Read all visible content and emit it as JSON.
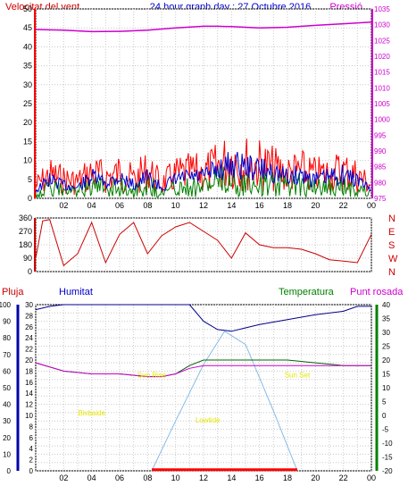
{
  "header": {
    "left_label": "Velocitat del vent",
    "title": "24 hour graph day : 27 Octubre 2016",
    "right_label": "Pressió"
  },
  "lower_labels": {
    "pluja": "Pluja",
    "humitat": "Humitat",
    "temperatura": "Temperatura",
    "punt_rosada": "Punt rosada"
  },
  "colors": {
    "wind_speed": "#ff0000",
    "wind_avg": "#0000cc",
    "wind_dir_avg": "#008000",
    "pressure": "#cc00cc",
    "direction": "#cc0000",
    "humidity": "#00008b",
    "temperature": "#006400",
    "dew_point": "#cc00cc",
    "sun": "#87bde8",
    "rain": "#ff0000",
    "sun_labels": "#e6e600",
    "left_axis_rain": "#0000aa",
    "right_axis_temp": "#008000",
    "axis_wind": "#ff0000",
    "axis_pressure": "#cc00cc"
  },
  "chart_data": [
    {
      "type": "line",
      "name": "wind-pressure",
      "x_ticks": [
        "02",
        "04",
        "06",
        "08",
        "10",
        "12",
        "14",
        "16",
        "18",
        "20",
        "22",
        "00"
      ],
      "y_left": {
        "ticks": [
          0,
          5,
          10,
          15,
          20,
          25,
          30,
          35,
          40,
          45,
          50
        ],
        "lim": [
          0,
          50
        ]
      },
      "y_right": {
        "ticks": [
          975,
          980,
          985,
          990,
          995,
          1000,
          1005,
          1010,
          1015,
          1020,
          1025,
          1030,
          1035
        ],
        "lim": [
          975,
          1035
        ]
      },
      "pressure": {
        "x": [
          0,
          2,
          4,
          6,
          8,
          10,
          12,
          13,
          14,
          16,
          18,
          20,
          22,
          24
        ],
        "y": [
          1028.5,
          1028.3,
          1027.8,
          1027.9,
          1028.3,
          1029.0,
          1029.5,
          1029.5,
          1029.4,
          1029.0,
          1029.2,
          1029.8,
          1030.3,
          1030.8
        ]
      },
      "wind_envelope": {
        "x": [
          0,
          1,
          2,
          3,
          4,
          5,
          6,
          7,
          8,
          9,
          10,
          11,
          12,
          13,
          14,
          15,
          16,
          17,
          18,
          19,
          20,
          21,
          22,
          23,
          24
        ],
        "gust": [
          6,
          11,
          9,
          8,
          12,
          10,
          12,
          9,
          13,
          7,
          11,
          12,
          12,
          15,
          19,
          17,
          16,
          14,
          12,
          13,
          11,
          12,
          13,
          11,
          6
        ],
        "avg": [
          3,
          7,
          5,
          4,
          8,
          6,
          8,
          5,
          8,
          4,
          7,
          8,
          8,
          11,
          13,
          12,
          11,
          10,
          8,
          9,
          7,
          8,
          9,
          7,
          3
        ],
        "dir_avg": [
          2,
          5,
          4,
          3,
          6,
          5,
          6,
          4,
          7,
          3,
          5,
          6,
          6,
          8,
          9,
          8,
          7,
          7,
          6,
          7,
          5,
          6,
          6,
          5,
          2
        ]
      }
    },
    {
      "type": "scatter",
      "name": "wind-direction",
      "x_ticks": [
        "02",
        "04",
        "06",
        "08",
        "10",
        "12",
        "14",
        "16",
        "18",
        "20",
        "22",
        "00"
      ],
      "y_left": {
        "ticks": [
          0,
          90,
          180,
          270,
          360
        ],
        "lim": [
          0,
          360
        ]
      },
      "y_right_labels": [
        "N",
        "W",
        "S",
        "E",
        "N"
      ],
      "direction": {
        "x": [
          0,
          0.5,
          1,
          2,
          3,
          4,
          5,
          6,
          7,
          8,
          9,
          10,
          11,
          12,
          13,
          14,
          15,
          16,
          17,
          18,
          19,
          20,
          21,
          22,
          23,
          24
        ],
        "y": [
          90,
          340,
          350,
          40,
          120,
          330,
          60,
          250,
          330,
          120,
          240,
          300,
          330,
          270,
          210,
          90,
          260,
          180,
          160,
          160,
          150,
          120,
          80,
          70,
          60,
          250
        ]
      }
    },
    {
      "type": "line",
      "name": "weather",
      "x_ticks": [
        "02",
        "04",
        "06",
        "08",
        "10",
        "12",
        "14",
        "16",
        "18",
        "20",
        "22",
        "00"
      ],
      "y_left": {
        "ticks": [
          0,
          5,
          10,
          15,
          20,
          25,
          30,
          35,
          40,
          45,
          50,
          55,
          60,
          65,
          70,
          75,
          80,
          85,
          90,
          95,
          100
        ],
        "lim": [
          0,
          100
        ]
      },
      "y_left_inner": {
        "ticks": [
          0,
          2,
          4,
          6,
          8,
          10,
          12,
          14,
          16,
          18,
          20,
          22,
          24,
          26,
          28,
          30
        ],
        "lim": [
          0,
          30
        ]
      },
      "y_right": {
        "ticks": [
          -20,
          -15,
          -10,
          -5,
          0,
          5,
          10,
          15,
          20,
          25,
          30,
          35,
          40
        ],
        "lim": [
          -20,
          40
        ]
      },
      "humidity": {
        "x": [
          0,
          1,
          2,
          4,
          6,
          8,
          10,
          11,
          12,
          13,
          14,
          15,
          16,
          18,
          20,
          22,
          23,
          24
        ],
        "y": [
          97,
          99,
          100,
          100,
          100,
          100,
          100,
          100,
          90,
          85,
          84,
          86,
          88,
          91,
          94,
          96,
          99,
          99
        ]
      },
      "temperature": {
        "x": [
          0,
          2,
          4,
          6,
          8,
          9,
          10,
          11,
          12,
          14,
          16,
          18,
          20,
          22,
          24
        ],
        "y": [
          19,
          16,
          15,
          15,
          14,
          14,
          15,
          18,
          20,
          20,
          20,
          20,
          19,
          18,
          18
        ]
      },
      "dew_point": {
        "x": [
          0,
          2,
          4,
          6,
          8,
          9,
          10,
          11,
          12,
          14,
          16,
          18,
          20,
          22,
          24
        ],
        "y": [
          19,
          16,
          15,
          15,
          14,
          14,
          15,
          17,
          18,
          18,
          18,
          18,
          18,
          18,
          18
        ]
      },
      "sun_curve": {
        "x": [
          8.3,
          10,
          12,
          13.5,
          15,
          17,
          18.7
        ],
        "y": [
          0,
          15,
          32,
          42,
          38,
          18,
          0
        ]
      },
      "rain": {
        "x": [
          8.3,
          18.7
        ],
        "y": [
          0.2,
          0.2
        ]
      },
      "annotations": [
        "Bixbaide",
        "Sun Rise",
        "Lowtide",
        "Sun Set"
      ]
    }
  ]
}
